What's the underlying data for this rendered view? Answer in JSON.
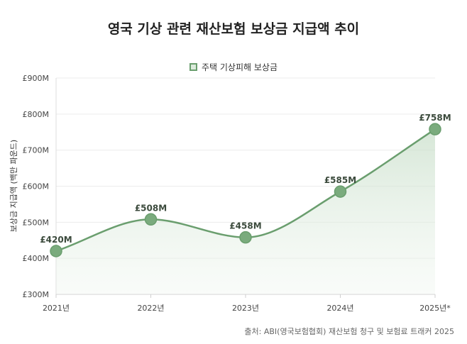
{
  "title": "영국 기상 관련 재산보험 보상금 지급액 추이",
  "source": "출처: ABI(영국보험협회) 재산보험 청구 및 보험료 트래커 2025",
  "colors": {
    "line": "#6a9e6e",
    "point": "#7aab7d",
    "fill": "#dcebdc",
    "grid": "#ececec"
  },
  "chart_data": {
    "type": "line",
    "title": "영국 기상 관련 재산보험 보상금 지급액 추이",
    "ylabel": "보상금 지급액 (백만 파운드)",
    "xlabel": "",
    "categories": [
      "2021년",
      "2022년",
      "2023년",
      "2024년",
      "2025년*"
    ],
    "series": [
      {
        "name": "주택 기상피해 보상금",
        "values": [
          420,
          508,
          458,
          585,
          758
        ]
      }
    ],
    "data_labels": [
      "£420M",
      "£508M",
      "£458M",
      "£585M",
      "£758M"
    ],
    "ylim": [
      300,
      900
    ],
    "yticks": [
      300,
      400,
      500,
      600,
      700,
      800,
      900
    ],
    "ytick_labels": [
      "£300M",
      "£400M",
      "£500M",
      "£600M",
      "£700M",
      "£800M",
      "£900M"
    ],
    "grid": true,
    "legend": "top-center",
    "area_fill": true
  }
}
